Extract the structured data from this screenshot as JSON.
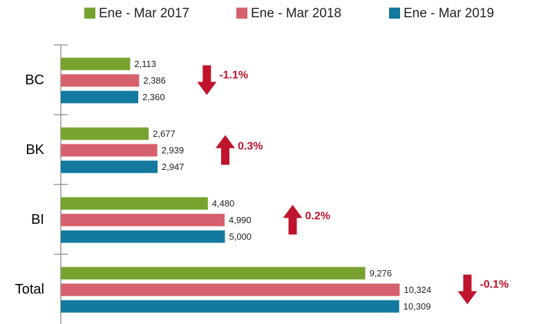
{
  "chart_data": {
    "type": "hbar",
    "categories": [
      "BC",
      "BK",
      "BI",
      "Total"
    ],
    "series": [
      {
        "name": "Ene - Mar 2017",
        "color": "#77a22f",
        "values": [
          2113,
          2677,
          4480,
          9276
        ],
        "value_labels": [
          "2,113",
          "2,677",
          "4,480",
          "9,276"
        ]
      },
      {
        "name": "Ene - Mar 2018",
        "color": "#d6606d",
        "values": [
          2386,
          2939,
          4990,
          10324
        ],
        "value_labels": [
          "2,386",
          "2,939",
          "4,990",
          "10,324"
        ]
      },
      {
        "name": "Ene - Mar 2019",
        "color": "#13799e",
        "values": [
          2360,
          2947,
          5000,
          10309
        ],
        "value_labels": [
          "2,360",
          "2,947",
          "5,000",
          "10,309"
        ]
      }
    ],
    "annotations": [
      {
        "text": "-1.1%",
        "direction": "down"
      },
      {
        "text": "0.3%",
        "direction": "up"
      },
      {
        "text": "0.2%",
        "direction": "up"
      },
      {
        "text": "-0.1%",
        "direction": "down"
      }
    ],
    "xlim": [
      0,
      10400
    ],
    "legend": "top",
    "annotation_color": "#c0142c"
  }
}
